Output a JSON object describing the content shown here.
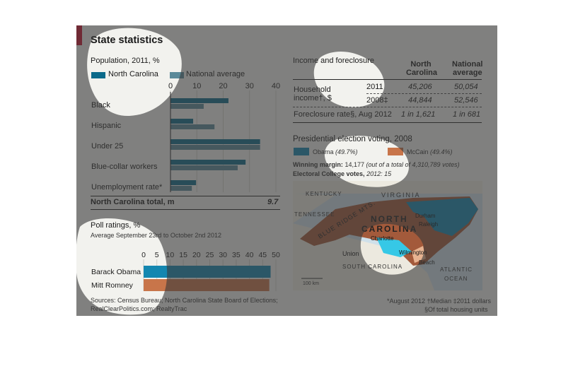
{
  "title": "State statistics",
  "population": {
    "heading": "Population, 2011, %",
    "legend_nc": "North Carolina",
    "legend_nat": "National average",
    "total_label": "North Carolina total, m",
    "total_value": "9.7"
  },
  "polls": {
    "heading": "Poll ratings, %",
    "subheading": "Average September 23rd to October 2nd 2012"
  },
  "sources": [
    "Sources: Census Bureau; North Carolina State Board of Elections;",
    "RealClearPolitics.com; RealtyTrac"
  ],
  "income": {
    "heading": "Income and foreclosure",
    "col_nc": [
      "North",
      "Carolina"
    ],
    "col_nat": [
      "National",
      "average"
    ],
    "row1_label": [
      "Household",
      "income†, $"
    ],
    "row1a_year": "2011",
    "row1a_nc": "45,206",
    "row1a_nat": "50,054",
    "row1b_year": "2008‡",
    "row1b_nc": "44,844",
    "row1b_nat": "52,546",
    "row2_label": "Foreclosure rate§, Aug 2012",
    "row2_nc": "1 in 1,621",
    "row2_nat": "1 in 681"
  },
  "election": {
    "heading": "Presidential election voting, 2008",
    "obama_label": "Obama",
    "obama_pct": "(49.7%)",
    "mccain_label": "McCain",
    "mccain_pct": "(49.4%)",
    "margin_label": "Winning margin:",
    "margin_value": "14,177",
    "margin_note": "(out of a total of 4,310,789 votes)",
    "ec_label": "Electoral College votes,",
    "ec_note": "2012: 15"
  },
  "map": {
    "kentucky": "KENTUCKY",
    "virginia": "VIRGINIA",
    "tennessee": "TENNESSEE",
    "blue_ridge": "BLUE RIDGE MTS.",
    "state_line1": "NORTH",
    "state_line2": "CAROLINA",
    "durham": "Durham",
    "raleigh": "Raleigh",
    "charlotte": "Charlotte",
    "union": "Union",
    "wilmington": "Wilmington",
    "myrtle": "Beach",
    "sc": "SOUTH CAROLINA",
    "atlantic": "ATLANTIC",
    "ocean": "OCEAN",
    "scale": "100 km"
  },
  "footnotes": [
    "*August 2012  †Median  ‡2011 dollars",
    "§Of total housing units"
  ],
  "colors": {
    "nc": "#0b6a8a",
    "national": "#5b8a99",
    "obama": "#1487b0",
    "romney": "#c8754a",
    "redbar": "#c8102e"
  },
  "chart_data": [
    {
      "type": "bar",
      "title": "Population, 2011, %",
      "categories": [
        "Black",
        "Hispanic",
        "Under 25",
        "Blue-collar workers",
        "Unemployment rate*"
      ],
      "series": [
        {
          "name": "North Carolina",
          "values": [
            22,
            8.6,
            34,
            28.5,
            9.7
          ]
        },
        {
          "name": "National average",
          "values": [
            12.6,
            16.7,
            34,
            25.5,
            8.1
          ]
        }
      ],
      "xlim": [
        0,
        40
      ],
      "xticks": [
        0,
        10,
        20,
        30,
        40
      ]
    },
    {
      "type": "bar",
      "title": "Poll ratings, %",
      "categories": [
        "Barack Obama",
        "Mitt Romney"
      ],
      "values": [
        48,
        47.5
      ],
      "xlim": [
        0,
        50
      ],
      "xticks": [
        0,
        5,
        10,
        15,
        20,
        25,
        30,
        35,
        40,
        45,
        50
      ]
    }
  ]
}
